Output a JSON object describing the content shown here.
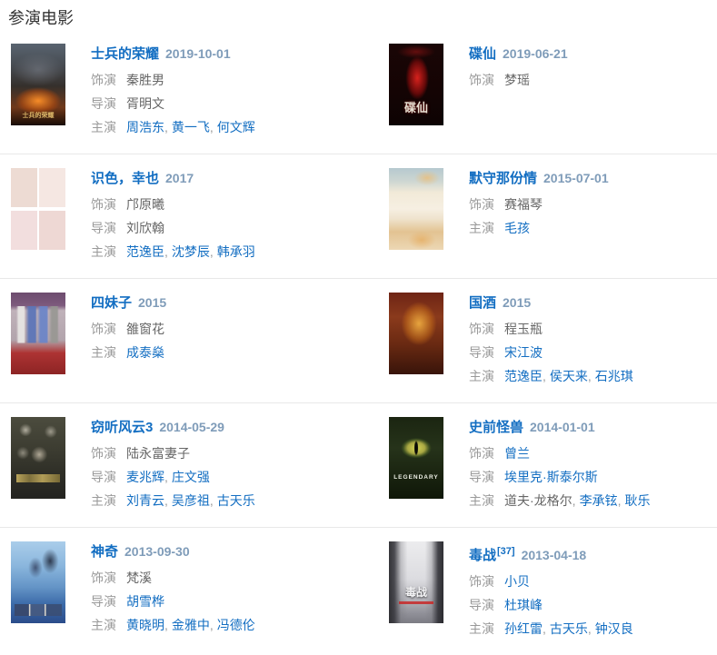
{
  "page": {
    "title": "参演电影"
  },
  "list_separator": ",",
  "colors": {
    "link_blue": "#136ec2",
    "date_gray_blue": "#7f9cb9",
    "label_gray": "#9a9a9a",
    "value_gray": "#666666",
    "separator_line": "#e8e8e8"
  },
  "movies": [
    {
      "title": "士兵的荣耀",
      "date": "2019-10-01",
      "poster_text": "士兵的荣耀",
      "lines": [
        {
          "label": "饰演",
          "parts": [
            {
              "text": "秦胜男",
              "link": false
            }
          ]
        },
        {
          "label": "导演",
          "parts": [
            {
              "text": "胥明文",
              "link": false
            }
          ]
        },
        {
          "label": "主演",
          "parts": [
            {
              "text": "周浩东",
              "link": true
            },
            {
              "text": "黄一飞",
              "link": true
            },
            {
              "text": "何文辉",
              "link": true
            }
          ]
        }
      ]
    },
    {
      "title": "碟仙",
      "date": "2019-06-21",
      "poster_text": "碟仙",
      "lines": [
        {
          "label": "饰演",
          "parts": [
            {
              "text": "梦瑶",
              "link": false
            }
          ]
        }
      ]
    },
    {
      "title": "识色，幸也",
      "date": "2017",
      "lines": [
        {
          "label": "饰演",
          "parts": [
            {
              "text": "邝原曦",
              "link": false
            }
          ]
        },
        {
          "label": "导演",
          "parts": [
            {
              "text": "刘欣翰",
              "link": false
            }
          ]
        },
        {
          "label": "主演",
          "parts": [
            {
              "text": "范逸臣",
              "link": true
            },
            {
              "text": "沈梦辰",
              "link": true
            },
            {
              "text": "韩承羽",
              "link": true
            }
          ]
        }
      ]
    },
    {
      "title": "默守那份情",
      "date": "2015-07-01",
      "lines": [
        {
          "label": "饰演",
          "parts": [
            {
              "text": "赛福琴",
              "link": false
            }
          ]
        },
        {
          "label": "主演",
          "parts": [
            {
              "text": "毛孩",
              "link": true
            }
          ]
        }
      ]
    },
    {
      "title": "四妹子",
      "date": "2015",
      "lines": [
        {
          "label": "饰演",
          "parts": [
            {
              "text": "雒窗花",
              "link": false
            }
          ]
        },
        {
          "label": "主演",
          "parts": [
            {
              "text": "成泰燊",
              "link": true
            }
          ]
        }
      ]
    },
    {
      "title": "国酒",
      "date": "2015",
      "lines": [
        {
          "label": "饰演",
          "parts": [
            {
              "text": "程玉瓶",
              "link": false
            }
          ]
        },
        {
          "label": "导演",
          "parts": [
            {
              "text": "宋江波",
              "link": true
            }
          ]
        },
        {
          "label": "主演",
          "parts": [
            {
              "text": "范逸臣",
              "link": true
            },
            {
              "text": "侯天来",
              "link": true
            },
            {
              "text": "石兆琪",
              "link": true
            }
          ]
        }
      ]
    },
    {
      "title": "窃听风云3",
      "date": "2014-05-29",
      "lines": [
        {
          "label": "饰演",
          "parts": [
            {
              "text": "陆永富妻子",
              "link": false
            }
          ]
        },
        {
          "label": "导演",
          "parts": [
            {
              "text": "麦兆辉",
              "link": true
            },
            {
              "text": "庄文强",
              "link": true
            }
          ]
        },
        {
          "label": "主演",
          "parts": [
            {
              "text": "刘青云",
              "link": true
            },
            {
              "text": "吴彦祖",
              "link": true
            },
            {
              "text": "古天乐",
              "link": true
            }
          ]
        }
      ]
    },
    {
      "title": "史前怪兽",
      "date": "2014-01-01",
      "poster_text": "LEGENDARY",
      "lines": [
        {
          "label": "饰演",
          "parts": [
            {
              "text": "曾兰",
              "link": true
            }
          ]
        },
        {
          "label": "导演",
          "parts": [
            {
              "text": "埃里克·斯泰尔斯",
              "link": true
            }
          ]
        },
        {
          "label": "主演",
          "parts": [
            {
              "text": "道夫·龙格尔",
              "link": false
            },
            {
              "text": "李承铉",
              "link": true
            },
            {
              "text": "耿乐",
              "link": true
            }
          ]
        }
      ]
    },
    {
      "title": "神奇",
      "date": "2013-09-30",
      "lines": [
        {
          "label": "饰演",
          "parts": [
            {
              "text": "梵溪",
              "link": false
            }
          ]
        },
        {
          "label": "导演",
          "parts": [
            {
              "text": "胡雪桦",
              "link": true
            }
          ]
        },
        {
          "label": "主演",
          "parts": [
            {
              "text": "黄晓明",
              "link": true
            },
            {
              "text": "金雅中",
              "link": true
            },
            {
              "text": "冯德伦",
              "link": true
            }
          ]
        }
      ]
    },
    {
      "title": "毒战",
      "sup": "[37]",
      "date": "2013-04-18",
      "poster_text": "毒战",
      "lines": [
        {
          "label": "饰演",
          "parts": [
            {
              "text": "小贝",
              "link": true
            }
          ]
        },
        {
          "label": "导演",
          "parts": [
            {
              "text": "杜琪峰",
              "link": true
            }
          ]
        },
        {
          "label": "主演",
          "parts": [
            {
              "text": "孙红雷",
              "link": true
            },
            {
              "text": "古天乐",
              "link": true
            },
            {
              "text": "钟汉良",
              "link": true
            }
          ]
        }
      ]
    }
  ]
}
